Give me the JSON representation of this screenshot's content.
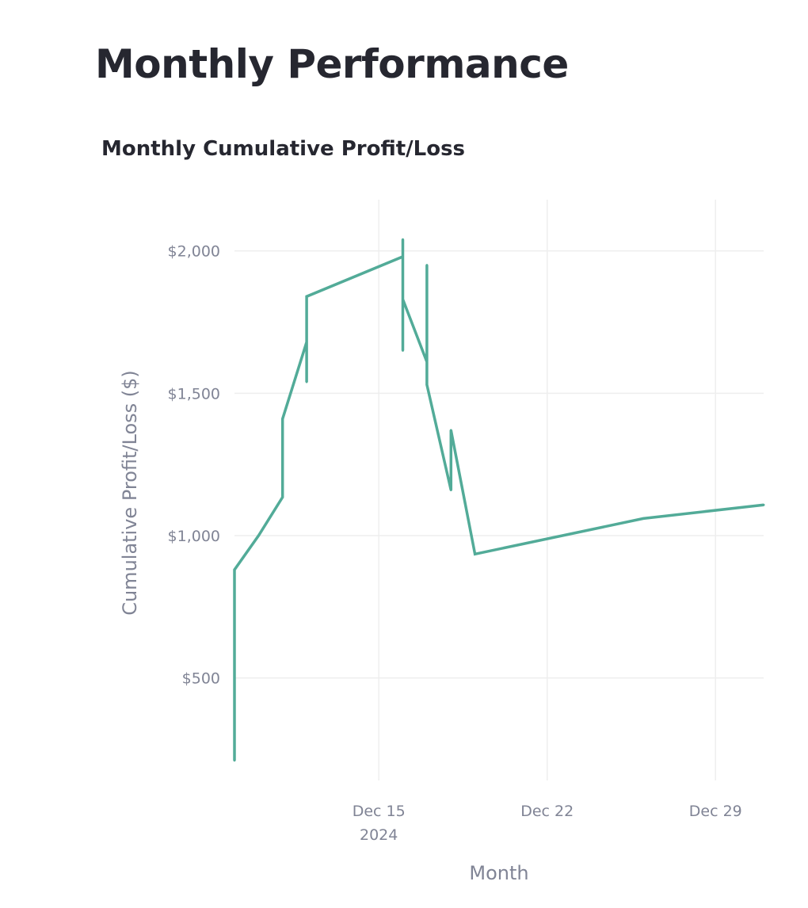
{
  "page": {
    "title": "Monthly Performance"
  },
  "chart_data": {
    "type": "line",
    "title": "Monthly Cumulative Profit/Loss",
    "xlabel": "Month",
    "ylabel": "Cumulative Profit/Loss ($)",
    "x_axis_type": "date",
    "xlim": [
      "2024-12-09",
      "2024-12-31"
    ],
    "ylim": [
      140,
      2180
    ],
    "y_ticks": [
      {
        "value": 500,
        "label": "$500"
      },
      {
        "value": 1000,
        "label": "$1,000"
      },
      {
        "value": 1500,
        "label": "$1,500"
      },
      {
        "value": 2000,
        "label": "$2,000"
      }
    ],
    "x_ticks": [
      {
        "date": "2024-12-15",
        "label": "Dec 15",
        "sublabel": "2024"
      },
      {
        "date": "2024-12-22",
        "label": "Dec 22",
        "sublabel": ""
      },
      {
        "date": "2024-12-29",
        "label": "Dec 29",
        "sublabel": ""
      }
    ],
    "grid": true,
    "line_color": "#52ab98",
    "series": [
      {
        "points": [
          {
            "x": "2024-12-09",
            "y": 210
          },
          {
            "x": "2024-12-09",
            "y": 880
          },
          {
            "x": "2024-12-10",
            "y": 1000
          },
          {
            "x": "2024-12-11",
            "y": 1135
          },
          {
            "x": "2024-12-11",
            "y": 1410
          },
          {
            "x": "2024-12-12",
            "y": 1680
          },
          {
            "x": "2024-12-12",
            "y": 1540
          },
          {
            "x": "2024-12-12",
            "y": 1840
          },
          {
            "x": "2024-12-16",
            "y": 1980
          },
          {
            "x": "2024-12-16",
            "y": 2040
          },
          {
            "x": "2024-12-16",
            "y": 1650
          },
          {
            "x": "2024-12-16",
            "y": 1830
          },
          {
            "x": "2024-12-17",
            "y": 1610
          },
          {
            "x": "2024-12-17",
            "y": 1950
          },
          {
            "x": "2024-12-17",
            "y": 1530
          },
          {
            "x": "2024-12-18",
            "y": 1160
          },
          {
            "x": "2024-12-18",
            "y": 1370
          },
          {
            "x": "2024-12-19",
            "y": 935
          },
          {
            "x": "2024-12-26",
            "y": 1060
          },
          {
            "x": "2024-12-31",
            "y": 1108
          }
        ]
      }
    ]
  }
}
